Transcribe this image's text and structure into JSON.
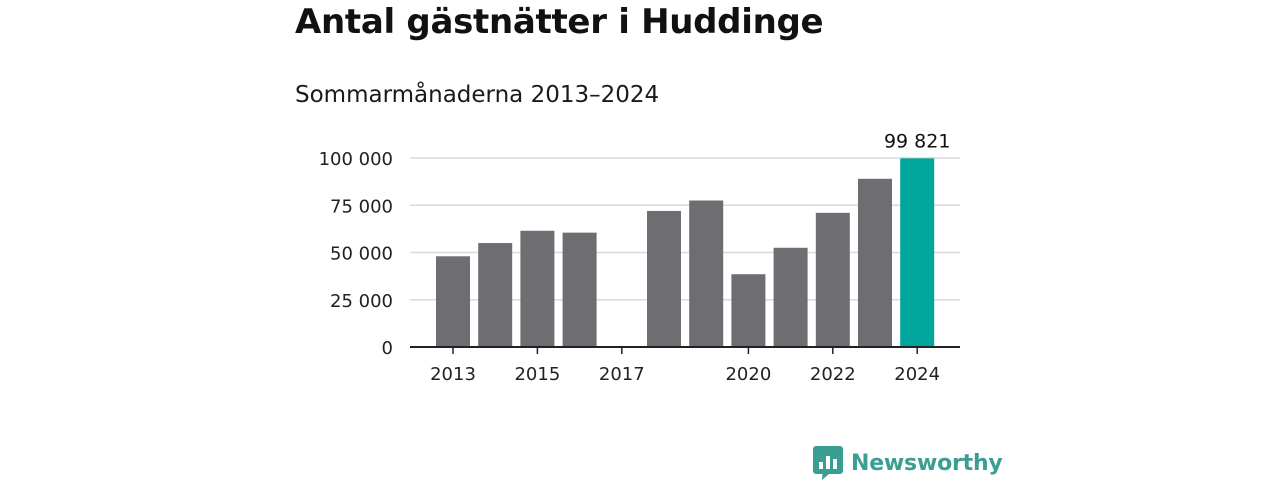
{
  "title": "Antal gästnätter i Huddinge",
  "subtitle": "Sommarmånaderna 2013–2024",
  "brand": {
    "name": "Newsworthy"
  },
  "colors": {
    "bar": "#6d6d72",
    "highlight": "#00a69c",
    "grid": "#d9d9d9",
    "axis": "#222222",
    "brand": "#3a9e93"
  },
  "chart_data": {
    "type": "bar",
    "title": "Antal gästnätter i Huddinge",
    "subtitle": "Sommarmånaderna 2013–2024",
    "xlabel": "",
    "ylabel": "",
    "categories": [
      "2013",
      "2014",
      "2015",
      "2016",
      "2017",
      "2018",
      "2019",
      "2020",
      "2021",
      "2022",
      "2023",
      "2024"
    ],
    "x_tick_labels": [
      "2013",
      "",
      "2015",
      "",
      "2017",
      "",
      "",
      "2020",
      "",
      "2022",
      "",
      "2024"
    ],
    "values": [
      48000,
      55000,
      61500,
      60500,
      null,
      72000,
      77500,
      38500,
      52500,
      71000,
      89000,
      99821
    ],
    "ylim": [
      0,
      100000
    ],
    "y_ticks": [
      0,
      25000,
      50000,
      75000,
      100000
    ],
    "y_tick_labels": [
      "0",
      "25 000",
      "50 000",
      "75 000",
      "100 000"
    ],
    "highlight_index": 11,
    "annotations": [
      {
        "category": "2024",
        "text": "99 821"
      }
    ],
    "grid": true,
    "legend": "none"
  }
}
